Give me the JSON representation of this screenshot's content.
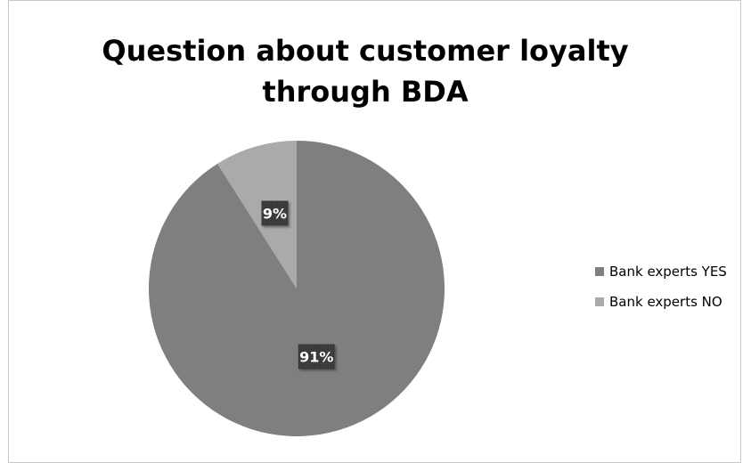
{
  "chart_data": {
    "type": "pie",
    "title": [
      "Question about customer loyalty",
      "through BDA"
    ],
    "categories": [
      "Bank experts YES",
      "Bank experts NO"
    ],
    "values": [
      91,
      9
    ],
    "data_labels": [
      "91%",
      "9%"
    ],
    "colors": [
      "#7f7f7f",
      "#aaaaaa"
    ],
    "legend_position": "right"
  }
}
